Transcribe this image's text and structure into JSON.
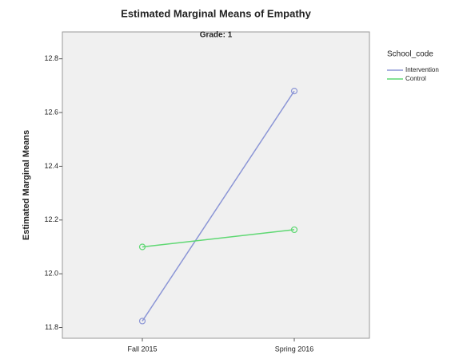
{
  "chart_data": {
    "type": "line",
    "title": "Estimated Marginal Means of Empathy",
    "subtitle": "Grade: 1",
    "y_label": "Estimated Marginal Means",
    "legend_title": "School_code",
    "categories": [
      "Fall 2015",
      "Spring 2016"
    ],
    "series": [
      {
        "name": "Intervention",
        "color": "#8c96d6",
        "values": [
          11.824,
          12.68
        ]
      },
      {
        "name": "Control",
        "color": "#5fd873",
        "values": [
          12.1,
          12.164
        ]
      }
    ],
    "ylim": [
      11.76,
      12.9
    ],
    "yticks": [
      11.8,
      {
        "value": 12,
        "label": "12.0"
      },
      12.2,
      12.4,
      12.6,
      12.8
    ],
    "legend": "right"
  }
}
